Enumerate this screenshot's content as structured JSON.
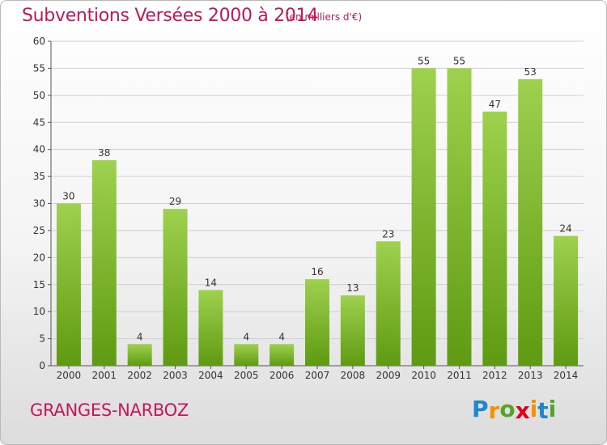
{
  "header": {
    "title": "Subventions Versées 2000 à 2014",
    "unit": "(en milliers d'€)"
  },
  "footer": {
    "commune": "GRANGES-NARBOZ",
    "brand": [
      "P",
      "r",
      "o",
      "x",
      "i",
      "t",
      "i"
    ],
    "brand_colors": [
      "#1e88c8",
      "#f29200",
      "#59a22a",
      "#e2001a",
      "#f29200",
      "#1e88c8",
      "#59a22a"
    ]
  },
  "colors": {
    "text_accent": "#c2185b",
    "bar_top": "#9ed14e",
    "bar_bottom": "#5f9a12",
    "grid": "#cfcfcf",
    "axis": "#555555"
  },
  "chart_data": {
    "type": "bar",
    "categories": [
      "2000",
      "2001",
      "2002",
      "2003",
      "2004",
      "2005",
      "2006",
      "2007",
      "2008",
      "2009",
      "2010",
      "2011",
      "2012",
      "2013",
      "2014"
    ],
    "values": [
      30,
      38,
      4,
      29,
      14,
      4,
      4,
      16,
      13,
      23,
      55,
      55,
      47,
      53,
      24
    ],
    "data_labels": [
      "30",
      "38",
      "4",
      "29",
      "14",
      "4",
      "4",
      "16",
      "13",
      "23",
      "55",
      "55",
      "47",
      "53",
      "24"
    ],
    "yticks": [
      0,
      5,
      10,
      15,
      20,
      25,
      30,
      35,
      40,
      45,
      50,
      55,
      60
    ],
    "ylim": [
      0,
      60
    ],
    "grid": true,
    "legend": "none"
  }
}
